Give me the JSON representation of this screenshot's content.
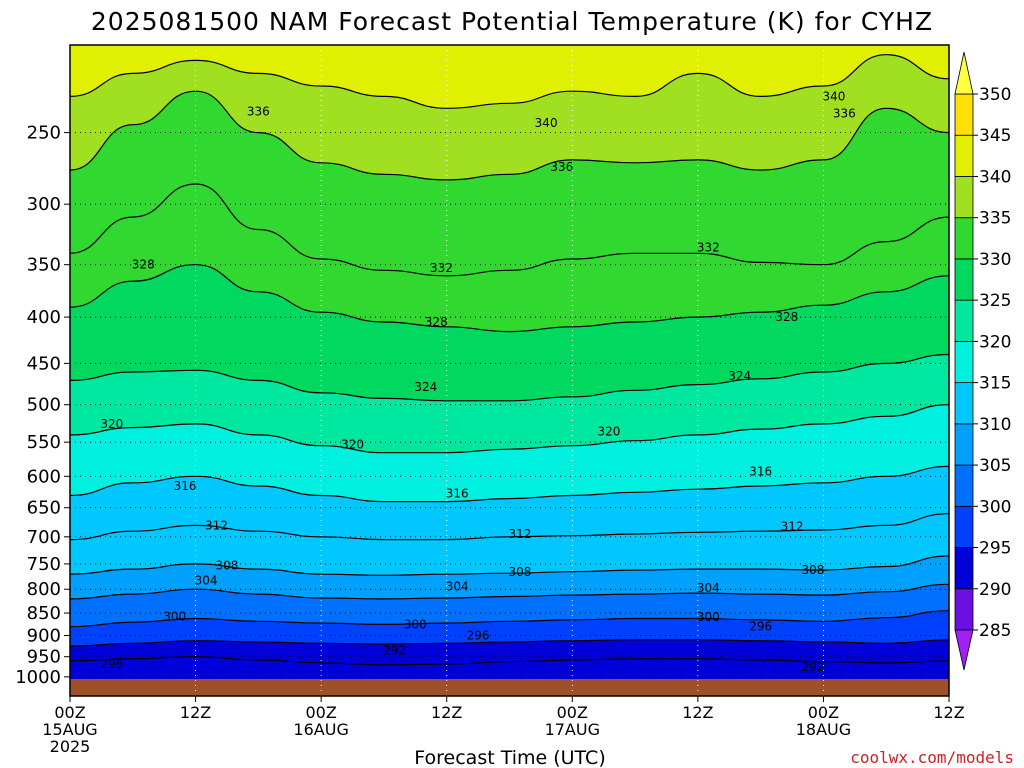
{
  "title": "2025081500 NAM Forecast Potential Temperature (K) for CYHZ",
  "xlabel": "Forecast Time (UTC)",
  "credit": "coolwx.com/models",
  "chart_data": {
    "type": "heatmap",
    "title": "2025081500 NAM Forecast Potential Temperature (K) for CYHZ",
    "xlabel": "Forecast Time (UTC)",
    "ylabel": "",
    "y_scale": "log",
    "y_inverted": true,
    "ylim": [
      1050,
      200
    ],
    "xlim": [
      0,
      84
    ],
    "x_ticks": [
      {
        "hour": 0,
        "lines": [
          "00Z",
          "15AUG",
          "2025"
        ]
      },
      {
        "hour": 12,
        "lines": [
          "12Z"
        ]
      },
      {
        "hour": 24,
        "lines": [
          "00Z",
          "16AUG"
        ]
      },
      {
        "hour": 36,
        "lines": [
          "12Z"
        ]
      },
      {
        "hour": 48,
        "lines": [
          "00Z",
          "17AUG"
        ]
      },
      {
        "hour": 60,
        "lines": [
          "12Z"
        ]
      },
      {
        "hour": 72,
        "lines": [
          "00Z",
          "18AUG"
        ]
      },
      {
        "hour": 84,
        "lines": [
          "12Z"
        ]
      }
    ],
    "y_ticks": [
      250,
      300,
      350,
      400,
      450,
      500,
      550,
      600,
      650,
      700,
      750,
      800,
      850,
      900,
      950,
      1000
    ],
    "grid": true,
    "colorbar": {
      "levels": [
        285,
        290,
        295,
        300,
        305,
        310,
        315,
        320,
        325,
        330,
        335,
        340,
        345,
        350
      ],
      "colors": [
        "#a020f0",
        "#6a10e0",
        "#0000d8",
        "#0040ff",
        "#0070ff",
        "#00a0ff",
        "#00c8ff",
        "#00f0e0",
        "#00e8a0",
        "#00d860",
        "#30d830",
        "#a0e020",
        "#e0f000",
        "#ffe000",
        "#ffff40"
      ],
      "placement": "right"
    },
    "hours": [
      0,
      6,
      12,
      18,
      24,
      30,
      36,
      42,
      48,
      54,
      60,
      66,
      72,
      78,
      84
    ],
    "contours": [
      {
        "value": 292,
        "pressure": [
          960,
          955,
          950,
          958,
          965,
          970,
          968,
          962,
          958,
          955,
          955,
          958,
          962,
          965,
          960
        ]
      },
      {
        "value": 296,
        "pressure": [
          925,
          918,
          912,
          915,
          918,
          920,
          918,
          915,
          912,
          910,
          910,
          912,
          915,
          918,
          910
        ]
      },
      {
        "value": 300,
        "pressure": [
          880,
          870,
          862,
          868,
          872,
          875,
          872,
          868,
          865,
          862,
          862,
          865,
          868,
          860,
          845
        ]
      },
      {
        "value": 304,
        "pressure": [
          820,
          810,
          800,
          810,
          818,
          820,
          818,
          815,
          812,
          810,
          808,
          810,
          812,
          805,
          790
        ]
      },
      {
        "value": 308,
        "pressure": [
          770,
          760,
          750,
          760,
          770,
          772,
          770,
          768,
          765,
          762,
          760,
          760,
          762,
          755,
          735
        ]
      },
      {
        "value": 312,
        "pressure": [
          705,
          690,
          680,
          690,
          700,
          705,
          705,
          700,
          698,
          695,
          692,
          690,
          688,
          680,
          660
        ]
      },
      {
        "value": 316,
        "pressure": [
          630,
          610,
          600,
          615,
          630,
          640,
          640,
          635,
          630,
          625,
          620,
          615,
          610,
          600,
          585
        ]
      },
      {
        "value": 320,
        "pressure": [
          540,
          530,
          525,
          540,
          555,
          565,
          565,
          560,
          555,
          548,
          540,
          532,
          525,
          515,
          500
        ]
      },
      {
        "value": 324,
        "pressure": [
          470,
          460,
          458,
          470,
          485,
          492,
          495,
          495,
          490,
          482,
          475,
          468,
          460,
          450,
          440
        ]
      },
      {
        "value": 328,
        "pressure": [
          390,
          365,
          350,
          375,
          395,
          405,
          410,
          415,
          410,
          405,
          400,
          395,
          388,
          375,
          360
        ]
      },
      {
        "value": 332,
        "pressure": [
          340,
          310,
          285,
          320,
          345,
          355,
          360,
          355,
          345,
          340,
          340,
          348,
          350,
          330,
          310
        ]
      },
      {
        "value": 336,
        "pressure": [
          275,
          245,
          225,
          250,
          270,
          278,
          282,
          278,
          268,
          270,
          268,
          275,
          268,
          235,
          250
        ]
      },
      {
        "value": 340,
        "pressure": [
          228,
          215,
          208,
          215,
          222,
          228,
          235,
          232,
          225,
          228,
          215,
          228,
          222,
          205,
          218
        ]
      }
    ],
    "contour_labels": [
      {
        "value": "336",
        "hour": 18,
        "pressure": 237
      },
      {
        "value": "340",
        "hour": 45.5,
        "pressure": 244
      },
      {
        "value": "336",
        "hour": 47,
        "pressure": 273
      },
      {
        "value": "340",
        "hour": 73,
        "pressure": 228
      },
      {
        "value": "336",
        "hour": 74,
        "pressure": 238
      },
      {
        "value": "328",
        "hour": 7,
        "pressure": 350
      },
      {
        "value": "332",
        "hour": 35.5,
        "pressure": 353
      },
      {
        "value": "332",
        "hour": 61,
        "pressure": 335
      },
      {
        "value": "328",
        "hour": 35,
        "pressure": 405
      },
      {
        "value": "328",
        "hour": 68.5,
        "pressure": 400
      },
      {
        "value": "324",
        "hour": 34,
        "pressure": 478
      },
      {
        "value": "324",
        "hour": 64,
        "pressure": 465
      },
      {
        "value": "320",
        "hour": 4,
        "pressure": 525
      },
      {
        "value": "320",
        "hour": 27,
        "pressure": 553
      },
      {
        "value": "320",
        "hour": 51.5,
        "pressure": 535
      },
      {
        "value": "316",
        "hour": 11,
        "pressure": 615
      },
      {
        "value": "316",
        "hour": 37,
        "pressure": 627
      },
      {
        "value": "316",
        "hour": 66,
        "pressure": 593
      },
      {
        "value": "312",
        "hour": 14,
        "pressure": 680
      },
      {
        "value": "312",
        "hour": 43,
        "pressure": 695
      },
      {
        "value": "312",
        "hour": 69,
        "pressure": 682
      },
      {
        "value": "308",
        "hour": 15,
        "pressure": 753
      },
      {
        "value": "308",
        "hour": 43,
        "pressure": 766
      },
      {
        "value": "308",
        "hour": 71,
        "pressure": 762
      },
      {
        "value": "304",
        "hour": 13,
        "pressure": 782
      },
      {
        "value": "304",
        "hour": 37,
        "pressure": 794
      },
      {
        "value": "304",
        "hour": 61,
        "pressure": 797
      },
      {
        "value": "300",
        "hour": 10,
        "pressure": 858
      },
      {
        "value": "300",
        "hour": 33,
        "pressure": 875
      },
      {
        "value": "300",
        "hour": 61,
        "pressure": 859
      },
      {
        "value": "296",
        "hour": 39,
        "pressure": 900
      },
      {
        "value": "296",
        "hour": 66,
        "pressure": 880
      },
      {
        "value": "296",
        "hour": 4,
        "pressure": 968
      },
      {
        "value": "292",
        "hour": 31,
        "pressure": 935
      },
      {
        "value": "292",
        "hour": 71,
        "pressure": 975
      }
    ]
  }
}
